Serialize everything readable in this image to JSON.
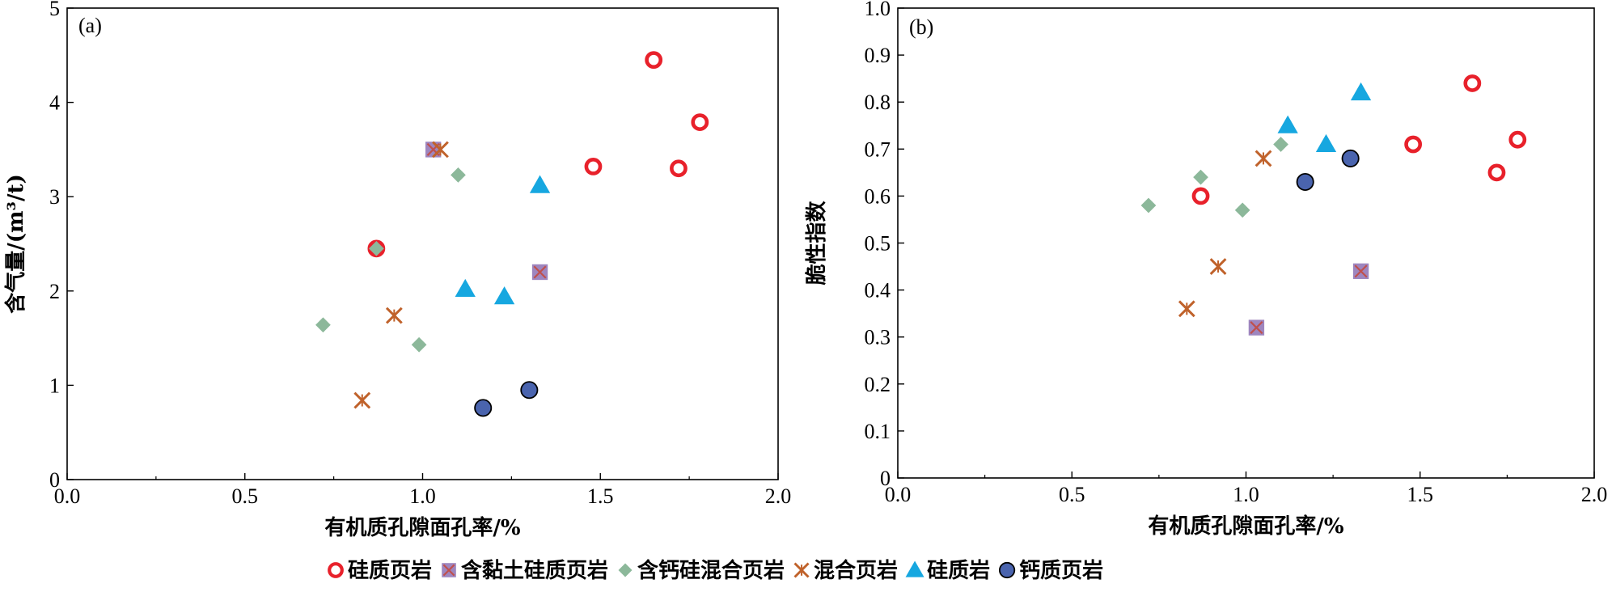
{
  "legend": [
    {
      "key": "siliceous_shale",
      "label": "硅质页岩"
    },
    {
      "key": "clay_bearing_siliceous_shale",
      "label": "含黏土硅质页岩"
    },
    {
      "key": "calc_bearing_mixed_shale",
      "label": "含钙硅混合页岩"
    },
    {
      "key": "mixed_shale",
      "label": "混合页岩"
    },
    {
      "key": "siliceous_rock",
      "label": "硅质岩"
    },
    {
      "key": "calcareous_shale",
      "label": "钙质页岩"
    }
  ],
  "styles": {
    "siliceous_shale": {
      "marker": "circle-open",
      "color": "#e8212b"
    },
    "clay_bearing_siliceous_shale": {
      "marker": "square-cross",
      "color": "#9e86bf",
      "cross_color": "#c0504d"
    },
    "calc_bearing_mixed_shale": {
      "marker": "diamond",
      "color": "#8cb89a"
    },
    "mixed_shale": {
      "marker": "asterisk",
      "color": "#c0622b"
    },
    "siliceous_rock": {
      "marker": "triangle",
      "color": "#16a7e0"
    },
    "calcareous_shale": {
      "marker": "circle-filled",
      "color": "#4a64ae"
    }
  },
  "chart_data": [
    {
      "type": "scatter",
      "panel_label": "(a)",
      "xlabel": "有机质孔隙面孔率/%",
      "ylabel": "含气量/(m³/t)",
      "xlim": [
        0,
        2.0
      ],
      "ylim": [
        0,
        5
      ],
      "xticks": [
        "0.0",
        "0.5",
        "1.0",
        "1.5",
        "2.0"
      ],
      "yticks": [
        "0",
        "1",
        "2",
        "3",
        "4",
        "5"
      ],
      "series": [
        {
          "name": "硅质页岩",
          "key": "siliceous_shale",
          "points": [
            [
              0.87,
              2.45
            ],
            [
              1.48,
              3.32
            ],
            [
              1.65,
              4.45
            ],
            [
              1.72,
              3.3
            ],
            [
              1.78,
              3.79
            ]
          ]
        },
        {
          "name": "含黏土硅质页岩",
          "key": "clay_bearing_siliceous_shale",
          "points": [
            [
              1.03,
              3.5
            ],
            [
              1.33,
              2.2
            ]
          ]
        },
        {
          "name": "含钙硅混合页岩",
          "key": "calc_bearing_mixed_shale",
          "points": [
            [
              0.72,
              1.64
            ],
            [
              0.87,
              2.45
            ],
            [
              0.99,
              1.43
            ],
            [
              1.1,
              3.23
            ]
          ]
        },
        {
          "name": "混合页岩",
          "key": "mixed_shale",
          "points": [
            [
              0.83,
              0.84
            ],
            [
              0.92,
              1.74
            ],
            [
              1.05,
              3.5
            ]
          ]
        },
        {
          "name": "硅质岩",
          "key": "siliceous_rock",
          "points": [
            [
              1.12,
              2.02
            ],
            [
              1.23,
              1.94
            ],
            [
              1.33,
              3.12
            ]
          ]
        },
        {
          "name": "钙质页岩",
          "key": "calcareous_shale",
          "points": [
            [
              1.17,
              0.76
            ],
            [
              1.3,
              0.95
            ]
          ]
        }
      ]
    },
    {
      "type": "scatter",
      "panel_label": "(b)",
      "xlabel": "有机质孔隙面孔率/%",
      "ylabel": "脆性指数",
      "xlim": [
        0,
        2.0
      ],
      "ylim": [
        0,
        1.0
      ],
      "xticks": [
        "0.0",
        "0.5",
        "1.0",
        "1.5",
        "2.0"
      ],
      "yticks": [
        "0",
        "0.1",
        "0.2",
        "0.3",
        "0.4",
        "0.5",
        "0.6",
        "0.7",
        "0.8",
        "0.9",
        "1.0"
      ],
      "series": [
        {
          "name": "硅质页岩",
          "key": "siliceous_shale",
          "points": [
            [
              0.87,
              0.6
            ],
            [
              1.48,
              0.71
            ],
            [
              1.65,
              0.84
            ],
            [
              1.72,
              0.65
            ],
            [
              1.78,
              0.72
            ]
          ]
        },
        {
          "name": "含黏土硅质页岩",
          "key": "clay_bearing_siliceous_shale",
          "points": [
            [
              1.03,
              0.32
            ],
            [
              1.33,
              0.44
            ]
          ]
        },
        {
          "name": "含钙硅混合页岩",
          "key": "calc_bearing_mixed_shale",
          "points": [
            [
              0.72,
              0.58
            ],
            [
              0.87,
              0.64
            ],
            [
              0.99,
              0.57
            ],
            [
              1.1,
              0.71
            ]
          ]
        },
        {
          "name": "混合页岩",
          "key": "mixed_shale",
          "points": [
            [
              0.83,
              0.36
            ],
            [
              0.92,
              0.45
            ],
            [
              1.05,
              0.68
            ]
          ]
        },
        {
          "name": "硅质岩",
          "key": "siliceous_rock",
          "points": [
            [
              1.12,
              0.75
            ],
            [
              1.23,
              0.71
            ],
            [
              1.33,
              0.82
            ]
          ]
        },
        {
          "name": "钙质页岩",
          "key": "calcareous_shale",
          "points": [
            [
              1.17,
              0.63
            ],
            [
              1.3,
              0.68
            ]
          ]
        }
      ]
    }
  ]
}
